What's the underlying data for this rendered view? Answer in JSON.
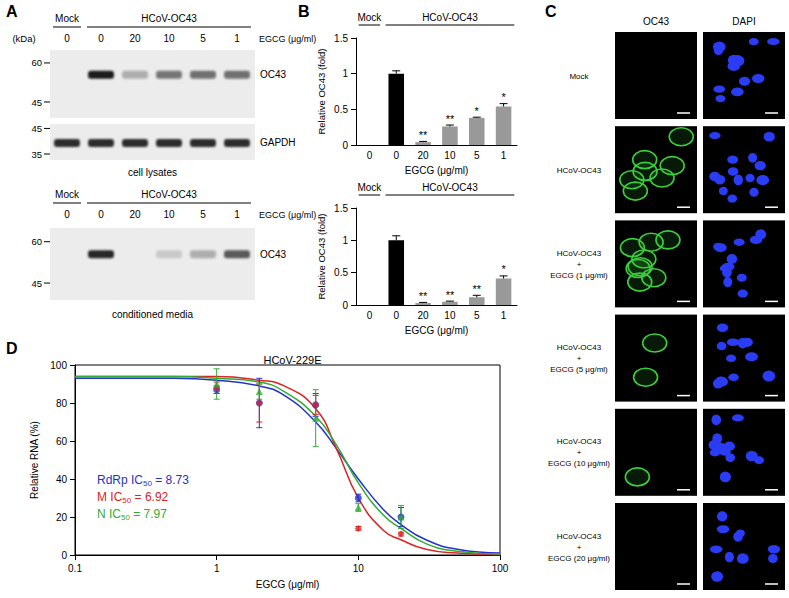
{
  "panel_labels": [
    "A",
    "B",
    "C",
    "D"
  ],
  "blots": [
    {
      "groups": [
        {
          "label": "Mock",
          "first": 0,
          "last": 0
        },
        {
          "label": "HCoV-OC43",
          "first": 1,
          "last": 5
        }
      ],
      "lanes": [
        "0",
        "0",
        "20",
        "10",
        "5",
        "1"
      ],
      "lane_title": "EGCG (μg/ml)",
      "unit": "(kDa)",
      "membranes": [
        {
          "markers": [
            60,
            45
          ],
          "kda_range": [
            66,
            40
          ],
          "band": "OC43",
          "band_kda": 55,
          "intensity": [
            0,
            1,
            0.3,
            0.55,
            0.6,
            0.6
          ]
        },
        {
          "markers": [
            45,
            35
          ],
          "kda_range": [
            47,
            33
          ],
          "band": "GAPDH",
          "band_kda": 39,
          "intensity": [
            0.9,
            0.9,
            0.9,
            0.9,
            0.9,
            0.9
          ]
        }
      ],
      "caption": "cell lysates"
    },
    {
      "groups": [
        {
          "label": "Mock",
          "first": 0,
          "last": 0
        },
        {
          "label": "HCoV-OC43",
          "first": 1,
          "last": 5
        }
      ],
      "lanes": [
        "0",
        "0",
        "20",
        "10",
        "5",
        "1"
      ],
      "lane_title": "EGCG (μg/ml)",
      "membranes": [
        {
          "markers": [
            60,
            45
          ],
          "kda_range": [
            66,
            40
          ],
          "band": "OC43",
          "band_kda": 55,
          "intensity": [
            0,
            0.95,
            0,
            0.15,
            0.3,
            0.7
          ]
        }
      ],
      "caption": "conditioned media"
    }
  ],
  "chart_data": [
    {
      "type": "bar",
      "x_label": "EGCG (μg/ml)",
      "y_label": "Relative OC43 (fold)",
      "groups": [
        {
          "label": "Mock",
          "first": 0,
          "last": 0
        },
        {
          "label": "HCoV-OC43",
          "first": 1,
          "last": 5
        }
      ],
      "categories": [
        "0",
        "0",
        "20",
        "10",
        "5",
        "1"
      ],
      "values": [
        0,
        1,
        0.04,
        0.26,
        0.38,
        0.54
      ],
      "errors": [
        null,
        0.04,
        0.01,
        0.02,
        0.01,
        0.04
      ],
      "annotations": [
        null,
        null,
        "**",
        "**",
        "*",
        "*"
      ],
      "colors": [
        "#000000",
        "#000000",
        "#999999",
        "#999999",
        "#999999",
        "#999999"
      ],
      "ylim": [
        0,
        1.5
      ],
      "yticks": [
        0,
        0.5,
        1,
        1.5
      ]
    },
    {
      "type": "bar",
      "x_label": "EGCG (μg/ml)",
      "y_label": "Relative OC43 (fold)",
      "groups": [
        {
          "label": "Mock",
          "first": 0,
          "last": 0
        },
        {
          "label": "HCoV-OC43",
          "first": 1,
          "last": 5
        }
      ],
      "categories": [
        "0",
        "0",
        "20",
        "10",
        "5",
        "1"
      ],
      "values": [
        0,
        1,
        0.03,
        0.05,
        0.12,
        0.41
      ],
      "errors": [
        null,
        0.07,
        0.01,
        0.01,
        0.03,
        0.04
      ],
      "annotations": [
        null,
        null,
        "**",
        "**",
        "**",
        "*"
      ],
      "colors": [
        "#000000",
        "#000000",
        "#999999",
        "#999999",
        "#999999",
        "#999999"
      ],
      "ylim": [
        0,
        1.5
      ],
      "yticks": [
        0,
        0.5,
        1,
        1.5
      ]
    },
    {
      "type": "line",
      "title": "HCoV-229E",
      "x_label": "EGCG (μg/ml)",
      "y_label": "Relative RNA (%)",
      "log": "x",
      "xlim": [
        0.1,
        100
      ],
      "xticks": [
        0.1,
        1,
        10,
        100
      ],
      "ylim": [
        0,
        100
      ],
      "yticks": [
        0,
        20,
        40,
        60,
        80,
        100
      ],
      "series": [
        {
          "label": "RdRp IC50 = 8.73",
          "color": "#2233cc",
          "marker": "circle",
          "x": [
            1,
            2,
            5,
            10,
            20
          ],
          "values": [
            87,
            80,
            79,
            30,
            20
          ],
          "errors": [
            2,
            13,
            6,
            2,
            5
          ],
          "fit_x": [
            0.1,
            0.5,
            1,
            2,
            3,
            5,
            7,
            10,
            15,
            20,
            30,
            50,
            100
          ],
          "fit_values": [
            93,
            93,
            92,
            89,
            84,
            70,
            56,
            40,
            24,
            16,
            8,
            3,
            1
          ]
        },
        {
          "label": "M IC50 = 6.92",
          "color": "#dd2222",
          "marker": "diamond",
          "x": [
            1,
            2,
            5,
            10,
            20
          ],
          "values": [
            88,
            80,
            79,
            14,
            11
          ],
          "errors": [
            3,
            10,
            5,
            1,
            1
          ],
          "fit_x": [
            0.1,
            0.5,
            1,
            2,
            3,
            5,
            7,
            10,
            15,
            20,
            30,
            50,
            100
          ],
          "fit_values": [
            94,
            94,
            94,
            92,
            89,
            77,
            56,
            30,
            13,
            8,
            3,
            1,
            0
          ]
        },
        {
          "label": "N IC50 = 7.97",
          "color": "#33aa33",
          "marker": "triangle",
          "x": [
            1,
            2,
            5,
            10,
            20
          ],
          "values": [
            90,
            86,
            72,
            25,
            20
          ],
          "errors": [
            8,
            4,
            15,
            2,
            6
          ],
          "fit_x": [
            0.1,
            0.5,
            1,
            2,
            3,
            5,
            7,
            10,
            15,
            20,
            30,
            50,
            100
          ],
          "fit_values": [
            94,
            94,
            93,
            91,
            86,
            73,
            58,
            38,
            21,
            14,
            6,
            2,
            0.5
          ]
        }
      ]
    }
  ],
  "images": {
    "columns": [
      "OC43",
      "DAPI"
    ],
    "colors": [
      "#3ccf3c",
      "#2b3cf5"
    ],
    "rows": [
      {
        "label": [
          "Mock"
        ],
        "infected_cells": 0,
        "nuclei": 13
      },
      {
        "label": [
          "HCoV-OC43"
        ],
        "infected_cells": 7,
        "nuclei": 14
      },
      {
        "label": [
          "HCoV-OC43",
          "+",
          "EGCG (1 μg/ml)"
        ],
        "infected_cells": 8,
        "nuclei": 12
      },
      {
        "label": [
          "HCoV-OC43",
          "+",
          "EGCG (5 μg/ml)"
        ],
        "infected_cells": 2,
        "nuclei": 12
      },
      {
        "label": [
          "HCoV-OC43",
          "+",
          "EGCG (10 μg/ml)"
        ],
        "infected_cells": 1,
        "nuclei": 12
      },
      {
        "label": [
          "HCoV-OC43",
          "+",
          "EGCG (20 μg/ml)"
        ],
        "infected_cells": 0,
        "nuclei": 10
      }
    ]
  }
}
